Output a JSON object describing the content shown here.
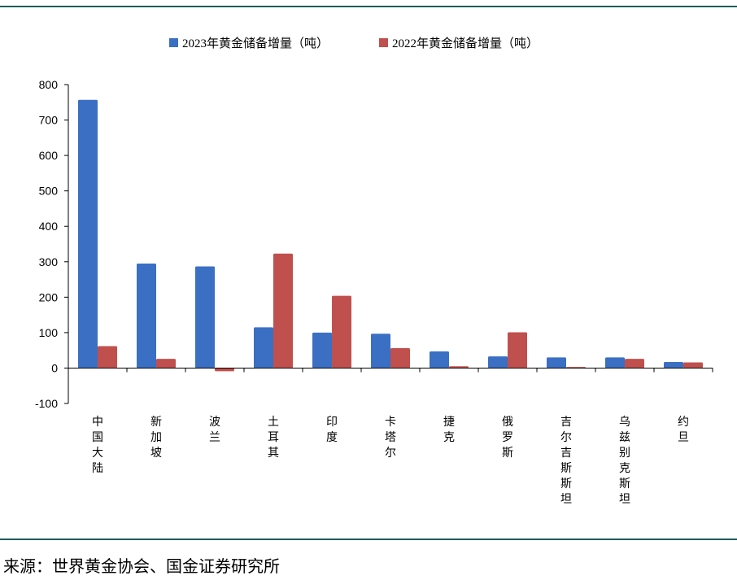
{
  "chart_data": {
    "type": "bar",
    "categories": [
      "中国大陆",
      "新加坡",
      "波兰",
      "土耳其",
      "印度",
      "卡塔尔",
      "捷克",
      "俄罗斯",
      "吉尔吉斯斯坦",
      "乌兹别克斯坦",
      "约旦"
    ],
    "series": [
      {
        "name": "2023年黄金储备增量（吨）",
        "color": "#3a6fc4",
        "values": [
          757,
          295,
          287,
          115,
          100,
          97,
          47,
          33,
          30,
          30,
          17
        ]
      },
      {
        "name": "2022年黄金储备增量（吨）",
        "color": "#c0504d",
        "values": [
          62,
          26,
          -9,
          323,
          204,
          56,
          5,
          101,
          3,
          26,
          16
        ]
      }
    ],
    "ylim": [
      -100,
      800
    ],
    "yticks": [
      "-100",
      "0",
      "100",
      "200",
      "300",
      "400",
      "500",
      "600",
      "700",
      "800"
    ],
    "legend_position": "top",
    "grid": false
  },
  "source": "来源：世界黄金协会、国金证券研究所"
}
